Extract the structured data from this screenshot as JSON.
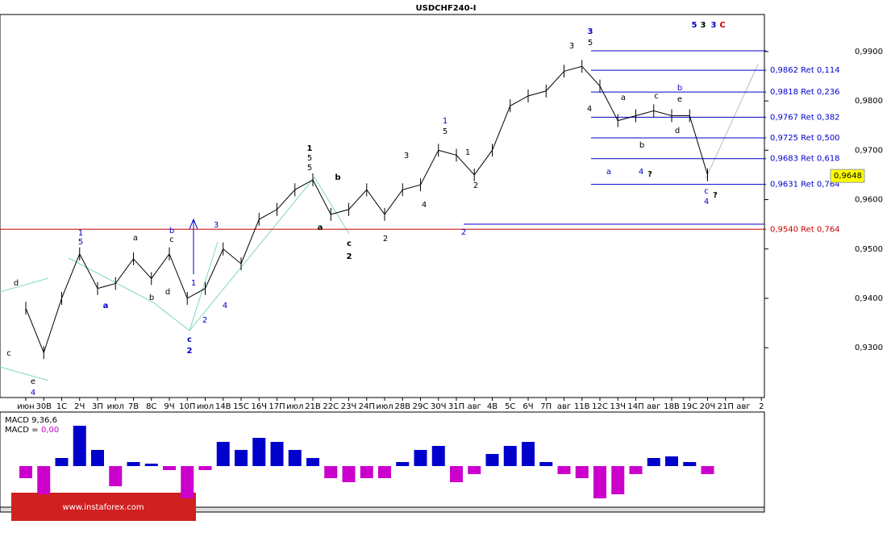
{
  "chart_data": {
    "type": "line",
    "title": "USDCHF240-I",
    "categories": [
      "июн",
      "30В",
      "1С",
      "2Ч",
      "3П",
      "июл",
      "7В",
      "8С",
      "9Ч",
      "10П",
      "июл",
      "14В",
      "15С",
      "16Ч",
      "17П",
      "июл",
      "21В",
      "22С",
      "23Ч",
      "24П",
      "июл",
      "28В",
      "29С",
      "30Ч",
      "31П",
      "авг",
      "4В",
      "5С",
      "6Ч",
      "7П",
      "авг",
      "11В",
      "12С",
      "13Ч",
      "14П",
      "авг",
      "18В",
      "19С",
      "20Ч",
      "21П",
      "авг",
      "2"
    ],
    "values": [
      0.938,
      0.929,
      0.94,
      0.949,
      0.942,
      0.943,
      0.948,
      0.944,
      0.949,
      0.94,
      0.942,
      0.95,
      0.947,
      0.956,
      0.958,
      0.962,
      0.964,
      0.957,
      0.958,
      0.962,
      0.957,
      0.962,
      0.963,
      0.97,
      0.969,
      0.965,
      0.97,
      0.979,
      0.981,
      0.982,
      0.986,
      0.987,
      0.983,
      0.976,
      0.977,
      0.978,
      0.977,
      0.977,
      0.965,
      null,
      null,
      null
    ],
    "color": "#000000",
    "ylim": [
      0.9199,
      0.9975
    ],
    "yticks": [
      {
        "value": 0.93,
        "label": "0,9300"
      },
      {
        "value": 0.94,
        "label": "0,9400"
      },
      {
        "value": 0.95,
        "label": "0,9500"
      },
      {
        "value": 0.96,
        "label": "0,9600"
      },
      {
        "value": 0.97,
        "label": "0,9700"
      },
      {
        "value": 0.98,
        "label": "0,9800"
      },
      {
        "value": 0.99,
        "label": "0,9900"
      }
    ],
    "current_price": {
      "value": 0.9648,
      "label": "0,9648"
    },
    "levels": [
      {
        "value": 0.9862,
        "label": "0,9862 Ret 0,114",
        "color": "#0000cc"
      },
      {
        "value": 0.9818,
        "label": "0,9818 Ret 0,236",
        "color": "#0000cc"
      },
      {
        "value": 0.9767,
        "label": "0,9767 Ret 0,382",
        "color": "#0000cc"
      },
      {
        "value": 0.9725,
        "label": "0,9725 Ret 0,500",
        "color": "#0000cc"
      },
      {
        "value": 0.9683,
        "label": "0,9683 Ret 0,618",
        "color": "#0000cc"
      },
      {
        "value": 0.9631,
        "label": "0,9631 Ret 0,764",
        "color": "#0000cc"
      },
      {
        "value": 0.954,
        "label": "0,9540 Ret 0,764",
        "color": "#cc0000"
      }
    ],
    "annotations": [
      "1",
      "5",
      "b",
      "c",
      "3",
      "1",
      "2",
      "4",
      "c",
      "2",
      "a",
      "b",
      "d",
      "a",
      "1",
      "5",
      "5",
      "b",
      "a",
      "c",
      "2",
      "2",
      "4",
      "3",
      "1",
      "5",
      "2",
      "1",
      "2",
      "3",
      "5",
      "3",
      "4",
      "a",
      "4",
      "?",
      "a",
      "b",
      "c",
      "d",
      "e",
      "b",
      "c",
      "4",
      "?",
      "5",
      "3",
      "3",
      "C",
      "d",
      "c",
      "e",
      "4"
    ],
    "macd": {
      "title": "MACD 9,36,6",
      "signal_name": "MACD =",
      "signal_value": "0,00",
      "positive_color": "#0000cc",
      "negative_color": "#cc00cc",
      "values": [
        -15,
        -35,
        10,
        50,
        20,
        -25,
        5,
        3,
        -5,
        -40,
        -5,
        30,
        20,
        35,
        30,
        20,
        10,
        -15,
        -20,
        -15,
        -15,
        5,
        20,
        25,
        -20,
        -10,
        15,
        25,
        30,
        5,
        -10,
        -15,
        -40,
        -35,
        -10,
        10,
        12,
        5,
        -10,
        null,
        null,
        null
      ]
    },
    "watermark": "www.instaforex.com"
  }
}
